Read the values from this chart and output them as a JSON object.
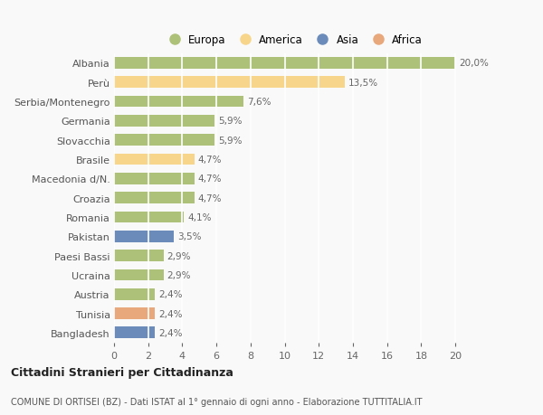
{
  "categories": [
    "Albania",
    "Perù",
    "Serbia/Montenegro",
    "Germania",
    "Slovacchia",
    "Brasile",
    "Macedonia d/N.",
    "Croazia",
    "Romania",
    "Pakistan",
    "Paesi Bassi",
    "Ucraina",
    "Austria",
    "Tunisia",
    "Bangladesh"
  ],
  "values": [
    20.0,
    13.5,
    7.6,
    5.9,
    5.9,
    4.7,
    4.7,
    4.7,
    4.1,
    3.5,
    2.9,
    2.9,
    2.4,
    2.4,
    2.4
  ],
  "labels": [
    "20,0%",
    "13,5%",
    "7,6%",
    "5,9%",
    "5,9%",
    "4,7%",
    "4,7%",
    "4,7%",
    "4,1%",
    "3,5%",
    "2,9%",
    "2,9%",
    "2,4%",
    "2,4%",
    "2,4%"
  ],
  "continents": [
    "Europa",
    "America",
    "Europa",
    "Europa",
    "Europa",
    "America",
    "Europa",
    "Europa",
    "Europa",
    "Asia",
    "Europa",
    "Europa",
    "Europa",
    "Africa",
    "Asia"
  ],
  "colors": {
    "Europa": "#adc178",
    "America": "#f7d58b",
    "Asia": "#6b8cba",
    "Africa": "#e8a87c"
  },
  "title1": "Cittadini Stranieri per Cittadinanza",
  "title2": "COMUNE DI ORTISEI (BZ) - Dati ISTAT al 1° gennaio di ogni anno - Elaborazione TUTTITALIA.IT",
  "xlim": [
    0,
    21
  ],
  "xticks": [
    0,
    2,
    4,
    6,
    8,
    10,
    12,
    14,
    16,
    18,
    20
  ],
  "background_color": "#f9f9f9",
  "grid_color": "#ffffff",
  "bar_height": 0.6,
  "legend_order": [
    "Europa",
    "America",
    "Asia",
    "Africa"
  ]
}
